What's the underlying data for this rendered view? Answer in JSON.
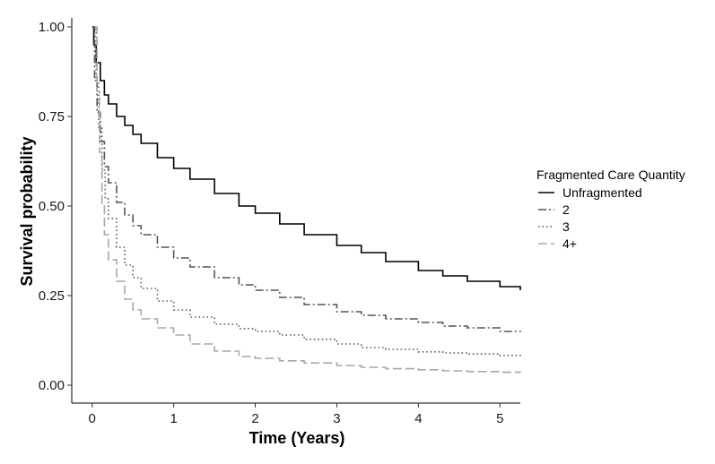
{
  "chart_data": {
    "type": "line",
    "xlabel": "Time (Years)",
    "ylabel": "Survival probability",
    "xlim": [
      -0.25,
      5.25
    ],
    "ylim": [
      -0.05,
      1.025
    ],
    "x_ticks": [
      0,
      1,
      2,
      3,
      4,
      5
    ],
    "y_ticks": [
      0.0,
      0.25,
      0.5,
      0.75,
      1.0
    ],
    "x_tick_labels": [
      "0",
      "1",
      "2",
      "3",
      "4",
      "5"
    ],
    "y_tick_labels": [
      "0.00",
      "0.25",
      "0.50",
      "0.75",
      "1.00"
    ],
    "grid": false,
    "legend": {
      "title": "Fragmented Care Quantity",
      "position": "right"
    },
    "series": [
      {
        "name": "Unfragmented",
        "color": "#000000",
        "dash": "solid",
        "points": [
          [
            0,
            1.0
          ],
          [
            0.02,
            0.95
          ],
          [
            0.05,
            0.9
          ],
          [
            0.1,
            0.85
          ],
          [
            0.15,
            0.81
          ],
          [
            0.2,
            0.785
          ],
          [
            0.3,
            0.75
          ],
          [
            0.4,
            0.725
          ],
          [
            0.5,
            0.7
          ],
          [
            0.6,
            0.675
          ],
          [
            0.8,
            0.635
          ],
          [
            1.0,
            0.605
          ],
          [
            1.2,
            0.575
          ],
          [
            1.5,
            0.535
          ],
          [
            1.8,
            0.5
          ],
          [
            2.0,
            0.48
          ],
          [
            2.3,
            0.45
          ],
          [
            2.6,
            0.42
          ],
          [
            3.0,
            0.39
          ],
          [
            3.3,
            0.37
          ],
          [
            3.6,
            0.345
          ],
          [
            4.0,
            0.32
          ],
          [
            4.3,
            0.305
          ],
          [
            4.6,
            0.29
          ],
          [
            5.0,
            0.275
          ],
          [
            5.25,
            0.265
          ]
        ]
      },
      {
        "name": "2",
        "color": "#555555",
        "dash": "longdash",
        "points": [
          [
            0,
            1.0
          ],
          [
            0.03,
            0.85
          ],
          [
            0.06,
            0.76
          ],
          [
            0.1,
            0.68
          ],
          [
            0.15,
            0.61
          ],
          [
            0.2,
            0.565
          ],
          [
            0.3,
            0.51
          ],
          [
            0.4,
            0.475
          ],
          [
            0.5,
            0.445
          ],
          [
            0.6,
            0.42
          ],
          [
            0.8,
            0.385
          ],
          [
            1.0,
            0.355
          ],
          [
            1.2,
            0.33
          ],
          [
            1.5,
            0.3
          ],
          [
            1.8,
            0.28
          ],
          [
            2.0,
            0.265
          ],
          [
            2.3,
            0.245
          ],
          [
            2.6,
            0.225
          ],
          [
            3.0,
            0.205
          ],
          [
            3.3,
            0.195
          ],
          [
            3.6,
            0.185
          ],
          [
            4.0,
            0.175
          ],
          [
            4.3,
            0.165
          ],
          [
            4.6,
            0.16
          ],
          [
            5.0,
            0.15
          ],
          [
            5.25,
            0.148
          ]
        ]
      },
      {
        "name": "3",
        "color": "#555555",
        "dash": "dotted",
        "points": [
          [
            0.02,
            1.0
          ],
          [
            0.05,
            0.85
          ],
          [
            0.08,
            0.72
          ],
          [
            0.12,
            0.6
          ],
          [
            0.16,
            0.52
          ],
          [
            0.2,
            0.465
          ],
          [
            0.3,
            0.385
          ],
          [
            0.4,
            0.335
          ],
          [
            0.5,
            0.3
          ],
          [
            0.6,
            0.27
          ],
          [
            0.8,
            0.235
          ],
          [
            1.0,
            0.21
          ],
          [
            1.2,
            0.19
          ],
          [
            1.5,
            0.17
          ],
          [
            1.8,
            0.158
          ],
          [
            2.0,
            0.15
          ],
          [
            2.3,
            0.14
          ],
          [
            2.6,
            0.128
          ],
          [
            3.0,
            0.115
          ],
          [
            3.3,
            0.105
          ],
          [
            3.6,
            0.1
          ],
          [
            4.0,
            0.093
          ],
          [
            4.3,
            0.09
          ],
          [
            4.6,
            0.087
          ],
          [
            5.0,
            0.083
          ],
          [
            5.25,
            0.08
          ]
        ]
      },
      {
        "name": "4+",
        "color": "#a8a8a8",
        "dash": "dashed",
        "points": [
          [
            0.03,
            1.0
          ],
          [
            0.06,
            0.82
          ],
          [
            0.09,
            0.65
          ],
          [
            0.12,
            0.5
          ],
          [
            0.15,
            0.42
          ],
          [
            0.2,
            0.35
          ],
          [
            0.3,
            0.29
          ],
          [
            0.4,
            0.24
          ],
          [
            0.5,
            0.21
          ],
          [
            0.6,
            0.185
          ],
          [
            0.8,
            0.16
          ],
          [
            1.0,
            0.14
          ],
          [
            1.2,
            0.115
          ],
          [
            1.5,
            0.095
          ],
          [
            1.8,
            0.08
          ],
          [
            2.0,
            0.075
          ],
          [
            2.3,
            0.068
          ],
          [
            2.6,
            0.062
          ],
          [
            3.0,
            0.055
          ],
          [
            3.3,
            0.05
          ],
          [
            3.6,
            0.046
          ],
          [
            4.0,
            0.043
          ],
          [
            4.3,
            0.04
          ],
          [
            4.6,
            0.038
          ],
          [
            5.0,
            0.036
          ],
          [
            5.25,
            0.035
          ]
        ]
      }
    ]
  }
}
